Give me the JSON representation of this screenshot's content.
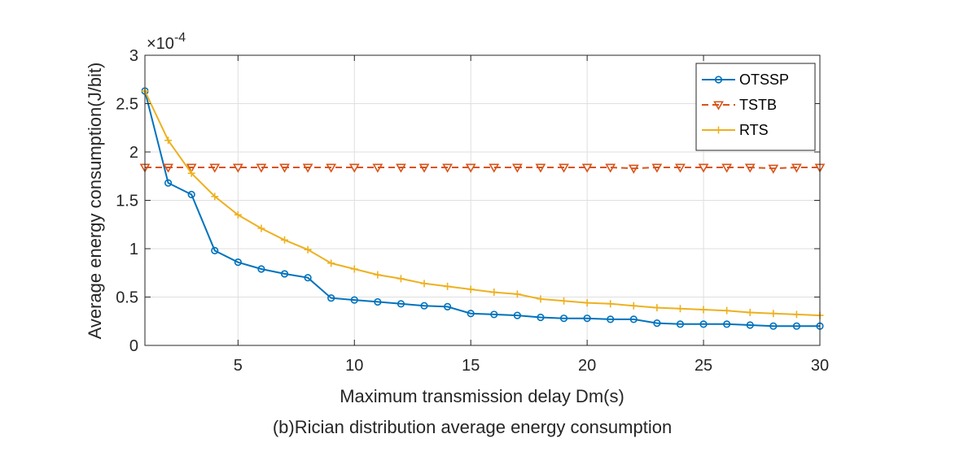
{
  "chart_data": {
    "type": "line",
    "title": "",
    "caption": "(b)Rician distribution average energy consumption",
    "xlabel": "Maximum transmission delay Dm(s)",
    "ylabel": "Average energy consumption(J/bit)",
    "y_multiplier": "×10^-4",
    "y_multiplier_base": "×10",
    "y_multiplier_exp": "-4",
    "xlim": [
      1,
      30
    ],
    "ylim": [
      0,
      3
    ],
    "xticks": [
      5,
      10,
      15,
      20,
      25,
      30
    ],
    "yticks": [
      0,
      0.5,
      1,
      1.5,
      2,
      2.5,
      3
    ],
    "xtick_labels": [
      "5",
      "10",
      "15",
      "20",
      "25",
      "30"
    ],
    "ytick_labels": [
      "0",
      "0.5",
      "1",
      "1.5",
      "2",
      "2.5",
      "3"
    ],
    "grid": true,
    "legend_position": "top-right",
    "x": [
      1,
      2,
      3,
      4,
      5,
      6,
      7,
      8,
      9,
      10,
      11,
      12,
      13,
      14,
      15,
      16,
      17,
      18,
      19,
      20,
      21,
      22,
      23,
      24,
      25,
      26,
      27,
      28,
      29,
      30
    ],
    "series": [
      {
        "name": "OTSSP",
        "color": "#0072BD",
        "marker": "circle",
        "line": "solid",
        "values": [
          2.63,
          1.68,
          1.56,
          0.98,
          0.86,
          0.79,
          0.74,
          0.7,
          0.49,
          0.47,
          0.45,
          0.43,
          0.41,
          0.4,
          0.33,
          0.32,
          0.31,
          0.29,
          0.28,
          0.28,
          0.27,
          0.27,
          0.23,
          0.22,
          0.22,
          0.22,
          0.21,
          0.2,
          0.2,
          0.2
        ]
      },
      {
        "name": "TSTB",
        "color": "#D95319",
        "marker": "triangle-down",
        "line": "dashed",
        "values": [
          1.84,
          1.84,
          1.84,
          1.84,
          1.84,
          1.84,
          1.84,
          1.84,
          1.84,
          1.84,
          1.84,
          1.84,
          1.84,
          1.84,
          1.84,
          1.84,
          1.84,
          1.84,
          1.84,
          1.84,
          1.84,
          1.83,
          1.84,
          1.84,
          1.84,
          1.84,
          1.84,
          1.83,
          1.84,
          1.84
        ]
      },
      {
        "name": "RTS",
        "color": "#EDB120",
        "marker": "plus",
        "line": "solid",
        "values": [
          2.63,
          2.12,
          1.78,
          1.54,
          1.35,
          1.21,
          1.09,
          0.99,
          0.85,
          0.79,
          0.73,
          0.69,
          0.64,
          0.61,
          0.58,
          0.55,
          0.53,
          0.48,
          0.46,
          0.44,
          0.43,
          0.41,
          0.39,
          0.38,
          0.37,
          0.36,
          0.34,
          0.33,
          0.32,
          0.31
        ]
      }
    ]
  }
}
